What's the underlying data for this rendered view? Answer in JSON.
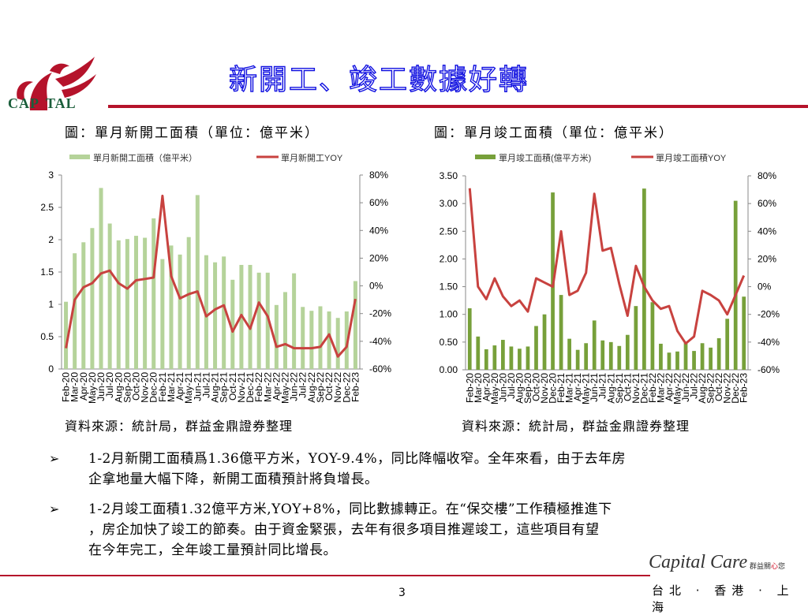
{
  "header": {
    "logo_text": "CAPITAL",
    "title": "新開工、竣工數據好轉",
    "brand_color": "#b5132b"
  },
  "charts_meta": {
    "left_caption": "圖：單月新開工面積（單位：億平米）",
    "right_caption": "圖：單月竣工面積（單位：億平米）",
    "left_source": "資料來源：統計局，群益金鼎證券整理",
    "right_source": "資料來源：統計局，群益金鼎證券整理"
  },
  "chart_data": [
    {
      "type": "bar",
      "title": "單月新開工面積（單位：億平米）",
      "categories": [
        "Feb-20",
        "Mar-20",
        "Apr-20",
        "May-20",
        "Jun-20",
        "Jul-20",
        "Aug-20",
        "Sep-20",
        "Oct-20",
        "Nov-20",
        "Dec-20",
        "Feb-21",
        "Mar-21",
        "Apr-21",
        "May-21",
        "Jun-21",
        "Jul-21",
        "Aug-21",
        "Sep-21",
        "Oct-21",
        "Nov-21",
        "Dec-21",
        "Feb-22",
        "Mar-22",
        "Apr-22",
        "May-22",
        "Jun-22",
        "Jul-22",
        "Aug-22",
        "Sep-22",
        "Oct-22",
        "Nov-22",
        "Dec-22",
        "Feb-23"
      ],
      "series": [
        {
          "name": "單月新開工面積（億平米）",
          "kind": "bar",
          "axis": "left",
          "color": "#b5d39a",
          "values": [
            1.04,
            1.79,
            1.96,
            2.18,
            2.8,
            2.25,
            1.99,
            2.01,
            2.06,
            2.03,
            2.33,
            1.7,
            1.91,
            1.77,
            2.04,
            2.69,
            1.76,
            1.65,
            1.74,
            1.38,
            1.61,
            1.61,
            1.49,
            1.49,
            0.99,
            1.19,
            1.48,
            0.96,
            0.9,
            0.97,
            0.89,
            0.79,
            0.89,
            1.36
          ]
        },
        {
          "name": "單月新開工YOY",
          "kind": "line",
          "axis": "right",
          "color": "#c8423f",
          "values": [
            -45,
            -10,
            -1,
            2,
            9,
            11,
            2,
            -2,
            4,
            5,
            6,
            65,
            7,
            -9,
            -6,
            -4,
            -22,
            -17,
            -14,
            -33,
            -21,
            -31,
            -12,
            -22,
            -44,
            -42,
            -45,
            -45,
            -45,
            -44,
            -35,
            -51,
            -44,
            -9.4
          ]
        }
      ],
      "left_axis": {
        "range": [
          0,
          3
        ],
        "ticks": [
          "0",
          "0.5",
          "1",
          "1.5",
          "2",
          "2.5",
          "3"
        ],
        "tick_values": [
          0,
          0.5,
          1,
          1.5,
          2,
          2.5,
          3
        ]
      },
      "right_axis": {
        "range": [
          -60,
          80
        ],
        "ticks": [
          "-60%",
          "-40%",
          "-20%",
          "0%",
          "20%",
          "40%",
          "60%",
          "80%"
        ],
        "tick_values": [
          -60,
          -40,
          -20,
          0,
          20,
          40,
          60,
          80
        ]
      },
      "legend": "top"
    },
    {
      "type": "bar",
      "title": "單月竣工面積（單位：億平米）",
      "categories": [
        "Feb-20",
        "Mar-20",
        "Apr-20",
        "May-20",
        "Jun-20",
        "Jul-20",
        "Aug-20",
        "Sep-20",
        "Oct-20",
        "Nov-20",
        "Dec-20",
        "Feb-21",
        "Mar-21",
        "Apr-21",
        "May-21",
        "Jun-21",
        "Jul-21",
        "Aug-21",
        "Sep-21",
        "Oct-21",
        "Nov-21",
        "Dec-21",
        "Feb-22",
        "Mar-22",
        "Apr-22",
        "May-22",
        "Jun-22",
        "Jul-22",
        "Aug-22",
        "Sep-22",
        "Oct-22",
        "Nov-22",
        "Dec-22",
        "Feb-23"
      ],
      "series": [
        {
          "name": "單月竣工面積(億平方米)",
          "kind": "bar",
          "axis": "left",
          "color": "#77a03a",
          "values": [
            1.11,
            0.6,
            0.37,
            0.44,
            0.54,
            0.42,
            0.38,
            0.42,
            0.79,
            1.0,
            3.2,
            1.35,
            0.56,
            0.36,
            0.48,
            0.89,
            0.53,
            0.5,
            0.43,
            0.63,
            1.15,
            3.27,
            1.22,
            0.47,
            0.31,
            0.33,
            0.5,
            0.34,
            0.48,
            0.4,
            0.57,
            0.92,
            3.05,
            1.32
          ]
        },
        {
          "name": "單月竣工面積YOY",
          "kind": "line",
          "axis": "right",
          "color": "#c8423f",
          "values": [
            71,
            0,
            -9,
            6,
            -7,
            -14,
            -10,
            -18,
            6,
            3,
            0,
            40,
            -6,
            -3,
            10,
            67,
            26,
            28,
            2,
            -21,
            15,
            0,
            -10,
            -16,
            -14,
            -32,
            -41,
            -36,
            -3,
            -6,
            -10,
            -20,
            -6,
            8
          ]
        }
      ],
      "left_axis": {
        "range": [
          0,
          3.5
        ],
        "ticks": [
          "0.00",
          "0.50",
          "1.00",
          "1.50",
          "2.00",
          "2.50",
          "3.00",
          "3.50"
        ],
        "tick_values": [
          0,
          0.5,
          1,
          1.5,
          2,
          2.5,
          3,
          3.5
        ]
      },
      "right_axis": {
        "range": [
          -60,
          80
        ],
        "ticks": [
          "-60%",
          "-40%",
          "-20%",
          "0%",
          "20%",
          "40%",
          "60%",
          "80%"
        ],
        "tick_values": [
          -60,
          -40,
          -20,
          0,
          20,
          40,
          60,
          80
        ]
      },
      "legend": "top"
    }
  ],
  "bullets": [
    {
      "icon": "arrow-bullet-icon",
      "line1": "1-2月新開工面積爲1.36億平方米，YOY-9.4%，同比降幅收窄。全年來看，由于去年房",
      "line2": "企拿地量大幅下降，新開工面積預計將負增長。"
    },
    {
      "icon": "arrow-bullet-icon",
      "line1": "1-2月竣工面積1.32億平方米,YOY+8%，同比數據轉正。在“保交樓”工作積極推進下",
      "line2": "，房企加快了竣工的節奏。由于資金緊張，去年有很多項目推遲竣工，這些項目有望",
      "line3": "在今年完工，全年竣工量預計同比增長。"
    }
  ],
  "footer": {
    "page_number": "3",
    "care_brand": "Capital Care",
    "care_cn_a": "群益關",
    "care_cn_heart": "心",
    "care_cn_b": "您",
    "cities": "台北 · 香港 · 上海"
  }
}
